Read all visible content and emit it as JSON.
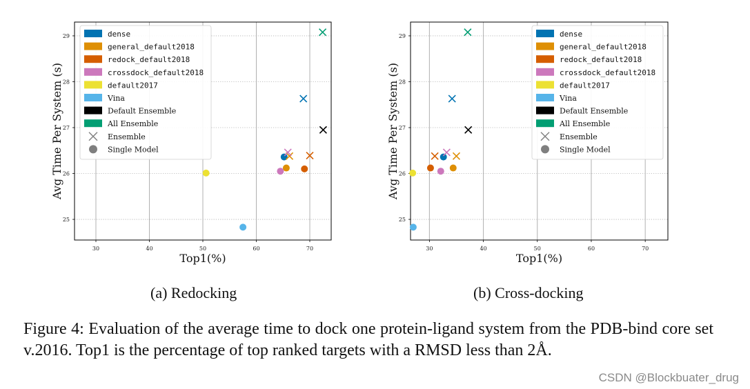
{
  "figure": {
    "subcaptions": [
      "(a) Redocking",
      "(b) Cross-docking"
    ],
    "caption": "Figure 4: Evaluation of the average time to dock one protein-ligand system from the PDB-bind core set v.2016. Top1 is the percentage of top ranked targets with a RMSD less than 2Å.",
    "watermark": "CSDN @Blockbuater_drug"
  },
  "chart_data": [
    {
      "type": "scatter",
      "title": "",
      "xlabel": "Top1(%)",
      "ylabel": "Avg Time Per System (s)",
      "xlim": [
        26,
        74
      ],
      "ylim": [
        24.55,
        29.3
      ],
      "xticks": [
        30,
        40,
        50,
        60,
        70
      ],
      "yticks": [
        25,
        26,
        27,
        28,
        29
      ],
      "grid": "x-solid-y-dotted",
      "legend": "top-left",
      "legend_entries": [
        {
          "label": "dense",
          "color": "#0173b2",
          "mono": true
        },
        {
          "label": "general_default2018",
          "color": "#de8f05",
          "mono": true
        },
        {
          "label": "redock_default2018",
          "color": "#d55e00",
          "mono": true
        },
        {
          "label": "crossdock_default2018",
          "color": "#cc78bc",
          "mono": true
        },
        {
          "label": "default2017",
          "color": "#ece133",
          "mono": true
        },
        {
          "label": "Vina",
          "color": "#56b4e9",
          "mono": false
        },
        {
          "label": "Default Ensemble",
          "color": "#000000",
          "mono": false
        },
        {
          "label": "All Ensemble",
          "color": "#029e73",
          "mono": false
        }
      ],
      "marker_legend": [
        {
          "label": "Ensemble",
          "marker": "x"
        },
        {
          "label": "Single Model",
          "marker": "o"
        }
      ],
      "points": [
        {
          "model": "dense",
          "marker": "x",
          "x": 68.8,
          "y": 27.63
        },
        {
          "model": "dense",
          "marker": "o",
          "x": 65.2,
          "y": 26.36
        },
        {
          "model": "general_default2018",
          "marker": "x",
          "x": 66.2,
          "y": 26.38
        },
        {
          "model": "general_default2018",
          "marker": "o",
          "x": 65.6,
          "y": 26.12
        },
        {
          "model": "redock_default2018",
          "marker": "x",
          "x": 70.0,
          "y": 26.39
        },
        {
          "model": "redock_default2018",
          "marker": "o",
          "x": 69.0,
          "y": 26.1
        },
        {
          "model": "crossdock_default2018",
          "marker": "x",
          "x": 65.9,
          "y": 26.46
        },
        {
          "model": "crossdock_default2018",
          "marker": "o",
          "x": 64.5,
          "y": 26.05
        },
        {
          "model": "default2017",
          "marker": "o",
          "x": 50.6,
          "y": 26.01
        },
        {
          "model": "Vina",
          "marker": "o",
          "x": 57.5,
          "y": 24.83
        },
        {
          "model": "Default Ensemble",
          "marker": "x",
          "x": 72.5,
          "y": 26.95
        },
        {
          "model": "All Ensemble",
          "marker": "x",
          "x": 72.4,
          "y": 29.08
        }
      ]
    },
    {
      "type": "scatter",
      "title": "",
      "xlabel": "Top1(%)",
      "ylabel": "Avg Time Per System (s)",
      "xlim": [
        26.5,
        74.2
      ],
      "ylim": [
        24.55,
        29.3
      ],
      "xticks": [
        30,
        40,
        50,
        60,
        70
      ],
      "yticks": [
        25,
        26,
        27,
        28,
        29
      ],
      "grid": "x-solid-y-dotted",
      "legend": "top-right",
      "legend_entries": [
        {
          "label": "dense",
          "color": "#0173b2",
          "mono": true
        },
        {
          "label": "general_default2018",
          "color": "#de8f05",
          "mono": true
        },
        {
          "label": "redock_default2018",
          "color": "#d55e00",
          "mono": true
        },
        {
          "label": "crossdock_default2018",
          "color": "#cc78bc",
          "mono": true
        },
        {
          "label": "default2017",
          "color": "#ece133",
          "mono": true
        },
        {
          "label": "Vina",
          "color": "#56b4e9",
          "mono": false
        },
        {
          "label": "Default Ensemble",
          "color": "#000000",
          "mono": false
        },
        {
          "label": "All Ensemble",
          "color": "#029e73",
          "mono": false
        }
      ],
      "marker_legend": [
        {
          "label": "Ensemble",
          "marker": "x"
        },
        {
          "label": "Single Model",
          "marker": "o"
        }
      ],
      "points": [
        {
          "model": "dense",
          "marker": "x",
          "x": 34.2,
          "y": 27.63
        },
        {
          "model": "dense",
          "marker": "o",
          "x": 32.6,
          "y": 26.36
        },
        {
          "model": "general_default2018",
          "marker": "x",
          "x": 35.0,
          "y": 26.38
        },
        {
          "model": "general_default2018",
          "marker": "o",
          "x": 34.4,
          "y": 26.12
        },
        {
          "model": "redock_default2018",
          "marker": "x",
          "x": 31.0,
          "y": 26.38
        },
        {
          "model": "redock_default2018",
          "marker": "o",
          "x": 30.2,
          "y": 26.12
        },
        {
          "model": "crossdock_default2018",
          "marker": "x",
          "x": 33.2,
          "y": 26.46
        },
        {
          "model": "crossdock_default2018",
          "marker": "o",
          "x": 32.1,
          "y": 26.05
        },
        {
          "model": "default2017",
          "marker": "o",
          "x": 26.9,
          "y": 26.01
        },
        {
          "model": "Vina",
          "marker": "o",
          "x": 27.0,
          "y": 24.83
        },
        {
          "model": "Default Ensemble",
          "marker": "x",
          "x": 37.2,
          "y": 26.95
        },
        {
          "model": "All Ensemble",
          "marker": "x",
          "x": 37.1,
          "y": 29.08
        }
      ]
    }
  ]
}
